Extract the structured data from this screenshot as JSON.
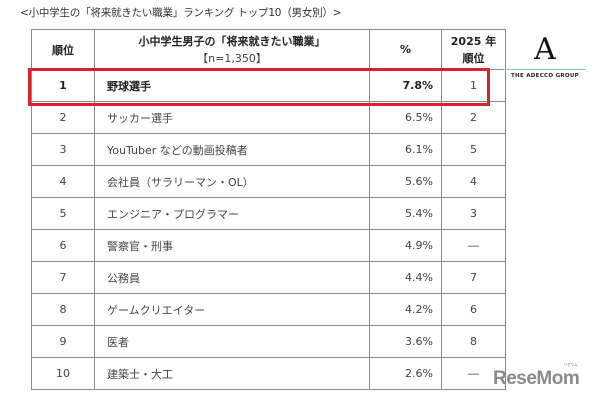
{
  "caption": "<小中学生の「将来就きたい職業」ランキング トップ10（男女別）>",
  "table": {
    "headers": {
      "rank": "順位",
      "job_line1": "小中学生男子の「将来就きたい職業」",
      "job_line2": "【n=1,350】",
      "pct": "%",
      "prev_line1": "2025 年",
      "prev_line2": "順位"
    },
    "rows": [
      {
        "rank": "1",
        "job": "野球選手",
        "pct": "7.8%",
        "prev": "1"
      },
      {
        "rank": "2",
        "job": "サッカー選手",
        "pct": "6.5%",
        "prev": "2"
      },
      {
        "rank": "3",
        "job": "YouTuber などの動画投稿者",
        "pct": "6.1%",
        "prev": "5"
      },
      {
        "rank": "4",
        "job": "会社員（サラリーマン・OL）",
        "pct": "5.6%",
        "prev": "4"
      },
      {
        "rank": "5",
        "job": "エンジニア・プログラマー",
        "pct": "5.4%",
        "prev": "3"
      },
      {
        "rank": "6",
        "job": "警察官・刑事",
        "pct": "4.9%",
        "prev": "―"
      },
      {
        "rank": "7",
        "job": "公務員",
        "pct": "4.4%",
        "prev": "7"
      },
      {
        "rank": "8",
        "job": "ゲームクリエイター",
        "pct": "4.2%",
        "prev": "6"
      },
      {
        "rank": "9",
        "job": "医者",
        "pct": "3.6%",
        "prev": "8"
      },
      {
        "rank": "10",
        "job": "建築士・大工",
        "pct": "2.6%",
        "prev": "―"
      }
    ]
  },
  "logos": {
    "adecco_mark": "A",
    "adecco_name": "THE ADECCO GROUP",
    "resemom": "ReseMom",
    "resemom_kana": "リセマム"
  },
  "colors": {
    "highlight_border": "#d9232a",
    "grid": "#8a8a8a",
    "adecco_rule": "#7fc9c4"
  }
}
